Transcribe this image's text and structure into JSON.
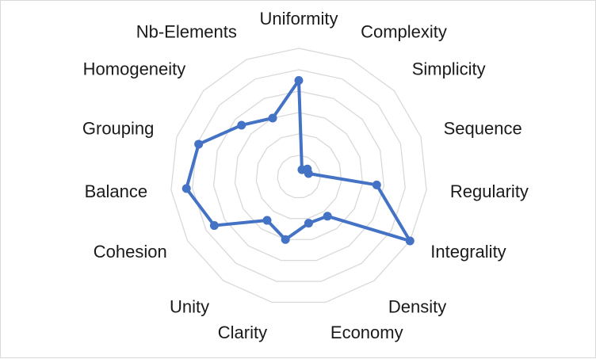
{
  "chart_data": {
    "type": "radar",
    "categories": [
      "Uniformity",
      "Complexity",
      "Simplicity",
      "Sequence",
      "Regularity",
      "Integrality",
      "Density",
      "Economy",
      "Clarity",
      "Unity",
      "Cohesion",
      "Balance",
      "Grouping",
      "Homogeneity",
      "Nb-Elements"
    ],
    "series": [
      {
        "values": [
          0.75,
          0.06,
          0.09,
          0.08,
          0.61,
          1.0,
          0.38,
          0.37,
          0.5,
          0.42,
          0.76,
          0.88,
          0.82,
          0.6,
          0.5
        ],
        "color": "#4472c4"
      }
    ],
    "rlim": [
      0,
      1
    ],
    "grid_rings": 6,
    "grid": true,
    "legend": "none"
  }
}
